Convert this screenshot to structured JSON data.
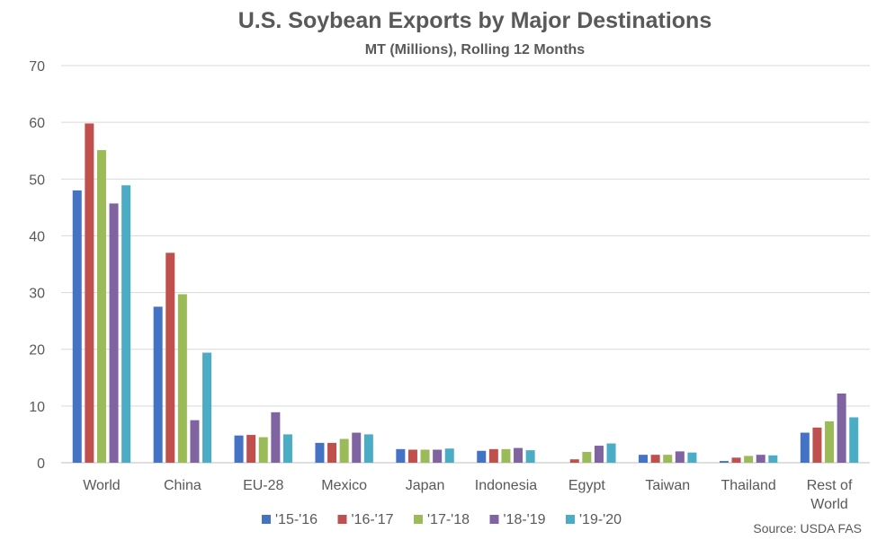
{
  "chart_data": {
    "type": "bar",
    "title": "U.S. Soybean Exports by Major Destinations",
    "subtitle": "MT (Millions), Rolling 12 Months",
    "source": "Source: USDA FAS",
    "ylim": [
      0,
      70
    ],
    "yticks": [
      0,
      10,
      20,
      30,
      40,
      50,
      60,
      70
    ],
    "grid": true,
    "legend_position": "bottom",
    "categories": [
      "World",
      "China",
      "EU-28",
      "Mexico",
      "Japan",
      "Indonesia",
      "Egypt",
      "Taiwan",
      "Thailand",
      "Rest of World"
    ],
    "series": [
      {
        "name": "'15-'16",
        "color": "#4472C4",
        "values": [
          48.0,
          27.5,
          4.8,
          3.5,
          2.4,
          2.1,
          0.0,
          1.4,
          0.3,
          5.3
        ]
      },
      {
        "name": "'16-'17",
        "color": "#C0504D",
        "values": [
          59.8,
          37.0,
          4.9,
          3.5,
          2.3,
          2.4,
          0.6,
          1.4,
          0.9,
          6.2
        ]
      },
      {
        "name": "'17-'18",
        "color": "#9BBB59",
        "values": [
          55.1,
          29.7,
          4.5,
          4.2,
          2.3,
          2.4,
          1.9,
          1.4,
          1.2,
          7.3
        ]
      },
      {
        "name": "'18-'19",
        "color": "#8064A2",
        "values": [
          45.7,
          7.5,
          8.9,
          5.3,
          2.3,
          2.6,
          3.0,
          2.0,
          1.4,
          12.2
        ]
      },
      {
        "name": "'19-'20",
        "color": "#4BACC6",
        "values": [
          48.9,
          19.4,
          5.0,
          5.0,
          2.5,
          2.2,
          3.4,
          1.8,
          1.3,
          8.0
        ]
      }
    ]
  }
}
